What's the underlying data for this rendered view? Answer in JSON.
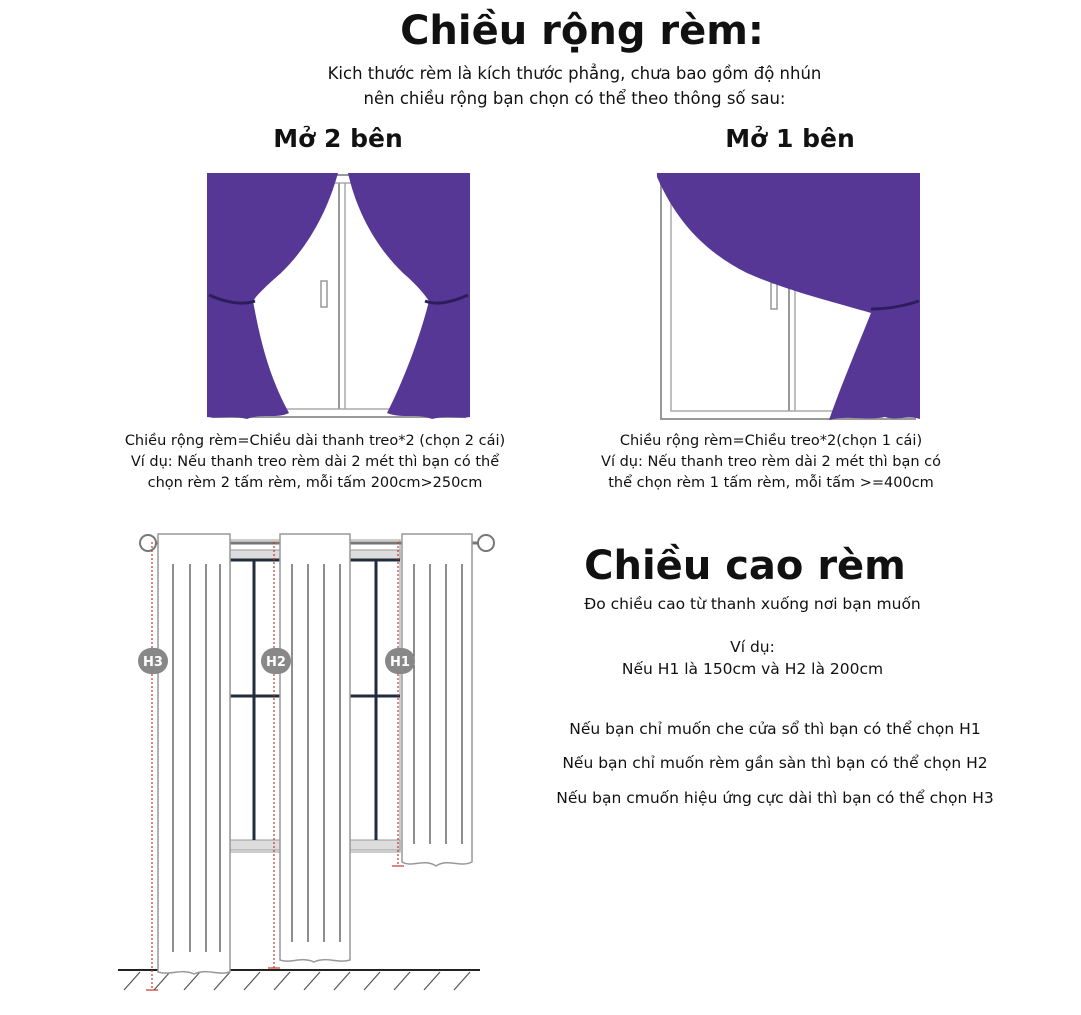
{
  "width": {
    "title": "Chiều rộng rèm:",
    "subtitle_line1": "Kich thước rèm là kích thước phẳng, chưa bao gồm độ nhún",
    "subtitle_line2": "nên chiều rộng bạn chọn có thể theo thông số sau:",
    "two_side": {
      "heading": "Mở 2 bên",
      "line1": "Chiều rộng rèm=Chiều dài thanh  treo*2 (chọn  2 cái)",
      "line2": "Ví dụ: Nếu thanh treo rèm dài 2 mét thì bạn có thể",
      "line3": "chọn rèm 2 tấm rèm, mỗi tấm  200cm>250cm"
    },
    "one_side": {
      "heading": "Mở 1 bên",
      "line1": "Chiều rộng rèm=Chiều  treo*2(chọn 1 cái)",
      "line2": "Ví dụ: Nếu thanh treo rèm dài 2 mét thì bạn có",
      "line3": "thể chọn rèm 1 tấm rèm, mỗi tấm >=400cm"
    }
  },
  "height": {
    "title": "Chiều cao rèm",
    "subtitle": "Đo chiều cao từ thanh xuống nơi bạn muốn",
    "example_label": "Ví dụ:",
    "example": "Nếu H1 là 150cm và H2 là 200cm",
    "option_h1": "Nếu bạn chỉ muốn che cửa sổ thì bạn có thể chọn H1",
    "option_h2": "Nếu bạn chỉ muốn rèm gần sàn  thì bạn có thể chọn H2",
    "option_h3": "Nếu bạn cmuốn hiệu ứng cực dài thì bạn có thể chọn H3",
    "badges": [
      "H3",
      "H2",
      "H1"
    ]
  },
  "colors": {
    "curtain": "#563796",
    "measure": "#c0392b",
    "badge": "#888888"
  }
}
